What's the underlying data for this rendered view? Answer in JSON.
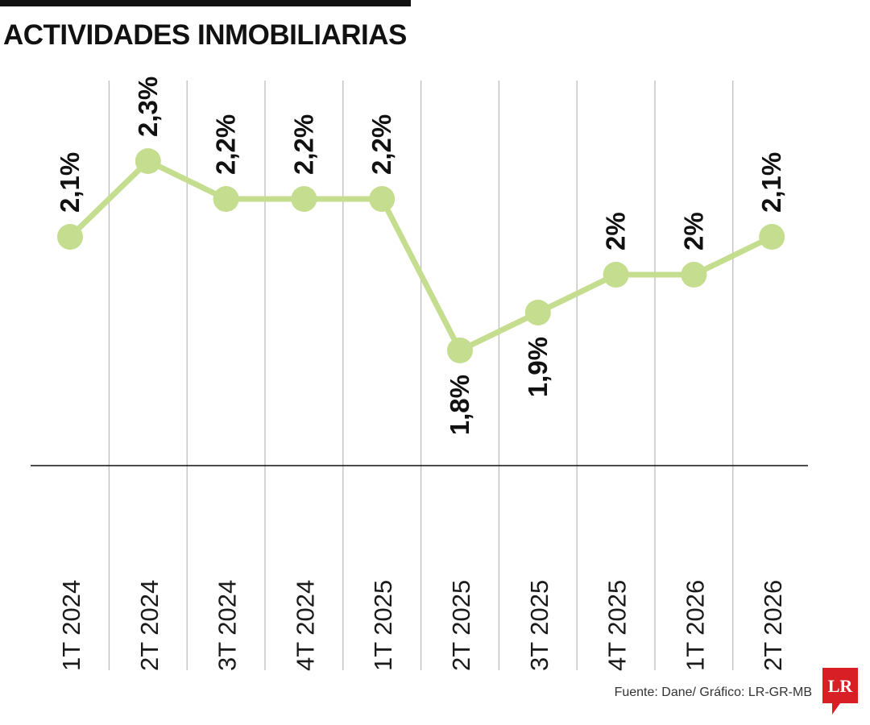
{
  "title": "ACTIVIDADES INMOBILIARIAS",
  "source": "Fuente: Dane/ Gráfico: LR-GR-MB",
  "logo_text": "LR",
  "colors": {
    "line": "#c5dd8e",
    "grid": "#bdbdbd",
    "axis": "#111111",
    "logo": "#d81f26"
  },
  "chart_data": {
    "type": "line",
    "title": "ACTIVIDADES INMOBILIARIAS",
    "xlabel": "",
    "ylabel": "",
    "categories": [
      "1T 2024",
      "2T 2024",
      "3T 2024",
      "4T 2024",
      "1T 2025",
      "2T 2025",
      "3T 2025",
      "4T 2025",
      "1T 2026",
      "2T 2026"
    ],
    "series": [
      {
        "values": [
          2.1,
          2.3,
          2.2,
          2.2,
          2.2,
          1.8,
          1.9,
          2.0,
          2.0,
          2.1
        ]
      }
    ],
    "data_labels": [
      "2,1%",
      "2,3%",
      "2,2%",
      "2,2%",
      "2,2%",
      "1,8%",
      "1,9%",
      "2%",
      "2%",
      "2,1%"
    ],
    "label_position": [
      "above",
      "above",
      "above",
      "above",
      "above",
      "below",
      "below",
      "above",
      "above",
      "above"
    ],
    "grid": true,
    "legend": "none"
  }
}
